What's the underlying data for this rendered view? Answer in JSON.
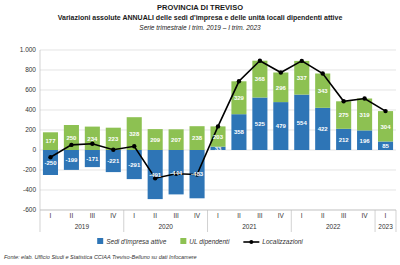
{
  "chart_data": {
    "type": "bar",
    "stacked": true,
    "title": "PROVINCIA DI TREVISO",
    "subtitle": "Variazioni assolute ANNUALI delle sedi d'impresa e delle unità locali dipendenti attive",
    "caption": "Serie trimestrale I trim. 2019 – I trim. 2023",
    "source": "Fonte: elab. Ufficio Studi e Statistica CCIAA Treviso-Belluno su dati Infocamere",
    "categories": [
      "I",
      "II",
      "III",
      "IV",
      "I",
      "II",
      "III",
      "IV",
      "I",
      "II",
      "III",
      "IV",
      "I",
      "II",
      "III",
      "IV",
      "I"
    ],
    "category_groups": [
      "2019",
      "2019",
      "2019",
      "2019",
      "2020",
      "2020",
      "2020",
      "2020",
      "2021",
      "2021",
      "2021",
      "2021",
      "2022",
      "2022",
      "2022",
      "2022",
      "2023"
    ],
    "series": [
      {
        "name": "Sedi d'impresa attive",
        "type": "bar",
        "color": "#2e75b6",
        "data_labels": true,
        "values": [
          -250,
          -199,
          -171,
          -221,
          -291,
          -491,
          -444,
          -483,
          33,
          358,
          525,
          479,
          554,
          422,
          212,
          196,
          85
        ]
      },
      {
        "name": "UL dipendenti",
        "type": "bar",
        "color": "#8dc152",
        "data_labels": true,
        "values": [
          177,
          250,
          234,
          223,
          328,
          209,
          207,
          238,
          203,
          329,
          368,
          296,
          337,
          343,
          275,
          319,
          304
        ]
      },
      {
        "name": "Localizzazioni",
        "type": "line",
        "color": "#000000",
        "marker": "circle",
        "data_labels": false,
        "values": [
          -73,
          51,
          63,
          2,
          37,
          -282,
          -237,
          -245,
          236,
          687,
          893,
          775,
          891,
          765,
          487,
          515,
          389
        ]
      }
    ],
    "ylim": [
      -600,
      1000
    ],
    "yticks": [
      -600,
      -400,
      -200,
      0,
      200,
      400,
      600,
      800,
      {
        "value": 1000,
        "label": "1.000"
      }
    ],
    "grid": true,
    "legend": "bottom"
  }
}
